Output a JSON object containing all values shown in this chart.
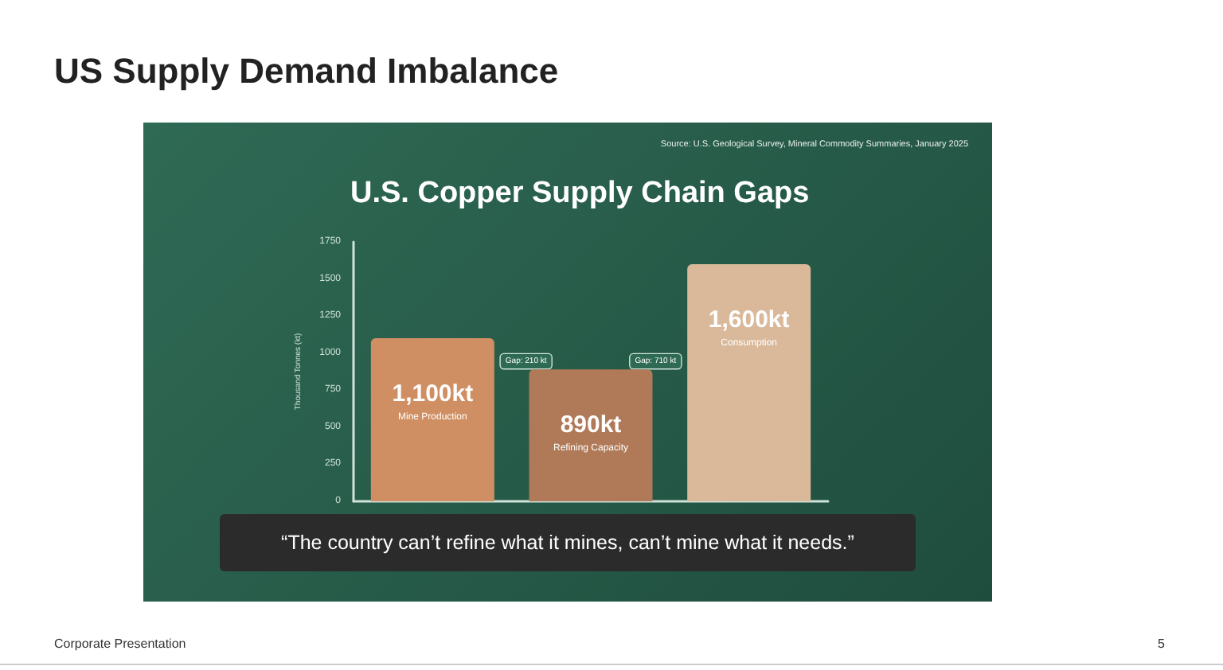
{
  "chart_data": {
    "type": "bar",
    "title": "US Supply Demand Imbalance",
    "subtitle": "U.S. Copper Supply Chain Gaps",
    "ylabel": "Thousand Tonnes (kt)",
    "categories": [
      "Mine Production",
      "Refining Capacity",
      "Consumption"
    ],
    "values": [
      1100,
      890,
      1600
    ],
    "value_labels": [
      "1,100kt",
      "890kt",
      "1,600kt"
    ],
    "colors": [
      "#d08f62",
      "#b07a58",
      "#d9b99a"
    ],
    "ylim": [
      0,
      1750
    ],
    "yticks": [
      0,
      250,
      500,
      750,
      1000,
      1250,
      1500,
      1750
    ],
    "grid": false,
    "annotations": [
      "Source: U.S. Geological Survey, Mineral Commodity Summaries, January 2025",
      "Gap: 210 kt",
      "Gap: 710 kt",
      "“The country can’t refine what it mines, can’t mine what it needs.”",
      "Corporate Presentation",
      "5"
    ]
  }
}
